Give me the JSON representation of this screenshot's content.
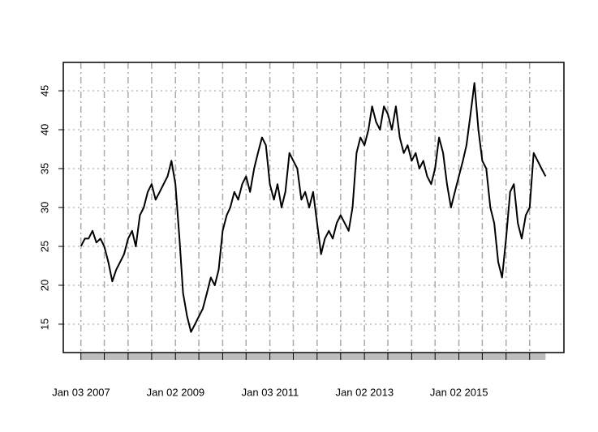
{
  "chart_data": {
    "type": "line",
    "color": "#000000",
    "x": [
      "2007-01",
      "2007-02",
      "2007-03",
      "2007-04",
      "2007-05",
      "2007-06",
      "2007-07",
      "2007-08",
      "2007-09",
      "2007-10",
      "2007-11",
      "2007-12",
      "2008-01",
      "2008-02",
      "2008-03",
      "2008-04",
      "2008-05",
      "2008-06",
      "2008-07",
      "2008-08",
      "2008-09",
      "2008-10",
      "2008-11",
      "2008-12",
      "2009-01",
      "2009-02",
      "2009-03",
      "2009-04",
      "2009-05",
      "2009-06",
      "2009-07",
      "2009-08",
      "2009-09",
      "2009-10",
      "2009-11",
      "2009-12",
      "2010-01",
      "2010-02",
      "2010-03",
      "2010-04",
      "2010-05",
      "2010-06",
      "2010-07",
      "2010-08",
      "2010-09",
      "2010-10",
      "2010-11",
      "2010-12",
      "2011-01",
      "2011-02",
      "2011-03",
      "2011-04",
      "2011-05",
      "2011-06",
      "2011-07",
      "2011-08",
      "2011-09",
      "2011-10",
      "2011-11",
      "2011-12",
      "2012-01",
      "2012-02",
      "2012-03",
      "2012-04",
      "2012-05",
      "2012-06",
      "2012-07",
      "2012-08",
      "2012-09",
      "2012-10",
      "2012-11",
      "2012-12",
      "2013-01",
      "2013-02",
      "2013-03",
      "2013-04",
      "2013-05",
      "2013-06",
      "2013-07",
      "2013-08",
      "2013-09",
      "2013-10",
      "2013-11",
      "2013-12",
      "2014-01",
      "2014-02",
      "2014-03",
      "2014-04",
      "2014-05",
      "2014-06",
      "2014-07",
      "2014-08",
      "2014-09",
      "2014-10",
      "2014-11",
      "2014-12",
      "2015-01",
      "2015-02",
      "2015-03",
      "2015-04",
      "2015-05",
      "2015-06",
      "2015-07",
      "2015-08",
      "2015-09",
      "2015-10",
      "2015-11",
      "2015-12",
      "2016-01",
      "2016-02",
      "2016-03",
      "2016-04",
      "2016-05",
      "2016-06",
      "2016-07",
      "2016-08",
      "2016-09",
      "2016-10",
      "2016-11"
    ],
    "values": [
      25,
      26,
      26,
      27,
      25.5,
      26,
      25,
      23,
      20.5,
      22,
      23,
      24,
      26,
      27,
      25,
      29,
      30,
      32,
      33,
      31,
      32,
      33,
      34,
      36,
      33,
      26,
      19,
      16,
      14,
      15,
      16,
      17,
      19,
      21,
      20,
      22,
      27,
      29,
      30,
      32,
      31,
      33,
      34,
      32,
      35,
      37,
      39,
      38,
      33,
      31,
      33,
      30,
      32,
      37,
      36,
      35,
      31,
      32,
      30,
      32,
      28,
      24,
      26,
      27,
      26,
      28,
      29,
      28,
      27,
      30,
      37,
      39,
      38,
      40,
      43,
      41,
      40,
      43,
      42,
      40,
      43,
      39,
      37,
      38,
      36,
      37,
      35,
      36,
      34,
      33,
      35,
      39,
      37,
      33,
      30,
      32,
      34,
      36,
      38,
      42,
      46,
      40,
      36,
      35,
      30,
      28,
      23,
      21,
      26,
      32,
      33,
      28,
      26,
      29,
      30,
      37,
      36,
      35,
      34
    ],
    "xlim": [
      "2006-08-18",
      "2017-03-23"
    ],
    "xticks": [
      {
        "value": "2007-01-03",
        "label": "Jan 03 2007"
      },
      {
        "value": "2009-01-02",
        "label": "Jan 02 2009"
      },
      {
        "value": "2011-01-03",
        "label": "Jan 03 2011"
      },
      {
        "value": "2013-01-02",
        "label": "Jan 02 2013"
      },
      {
        "value": "2015-01-02",
        "label": "Jan 02 2015"
      }
    ],
    "xgrid": [
      "2007-01",
      "2007-07",
      "2008-01",
      "2008-07",
      "2009-01",
      "2009-07",
      "2010-01",
      "2010-07",
      "2011-01",
      "2011-07",
      "2012-01",
      "2012-07",
      "2013-01",
      "2013-07",
      "2014-01",
      "2014-07",
      "2015-01",
      "2015-07",
      "2016-01",
      "2016-07"
    ],
    "ylim": [
      11.35,
      48.65
    ],
    "yticks": [
      15,
      20,
      25,
      30,
      35,
      40,
      45
    ],
    "grid": true
  }
}
